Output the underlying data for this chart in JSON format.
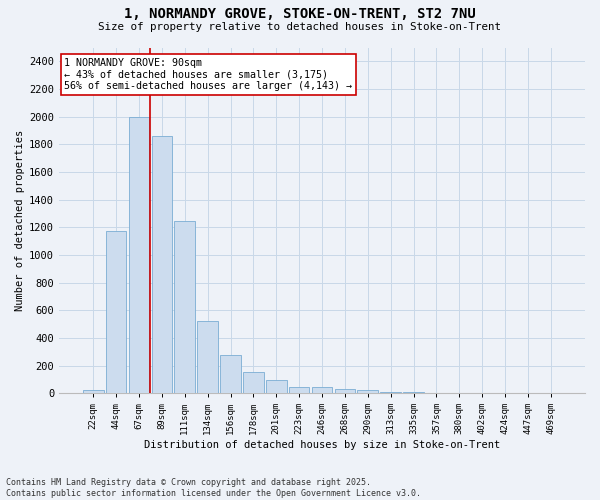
{
  "title_line1": "1, NORMANDY GROVE, STOKE-ON-TRENT, ST2 7NU",
  "title_line2": "Size of property relative to detached houses in Stoke-on-Trent",
  "xlabel": "Distribution of detached houses by size in Stoke-on-Trent",
  "ylabel": "Number of detached properties",
  "bar_labels": [
    "22sqm",
    "44sqm",
    "67sqm",
    "89sqm",
    "111sqm",
    "134sqm",
    "156sqm",
    "178sqm",
    "201sqm",
    "223sqm",
    "246sqm",
    "268sqm",
    "290sqm",
    "313sqm",
    "335sqm",
    "357sqm",
    "380sqm",
    "402sqm",
    "424sqm",
    "447sqm",
    "469sqm"
  ],
  "bar_values": [
    25,
    1170,
    2000,
    1860,
    1245,
    520,
    275,
    155,
    95,
    45,
    45,
    30,
    20,
    5,
    5,
    3,
    2,
    2,
    2,
    2,
    2
  ],
  "bar_color": "#ccdcee",
  "bar_edge_color": "#7aadd4",
  "grid_color": "#c8d8e8",
  "bg_color": "#eef2f8",
  "annotation_line1": "1 NORMANDY GROVE: 90sqm",
  "annotation_line2": "← 43% of detached houses are smaller (3,175)",
  "annotation_line3": "56% of semi-detached houses are larger (4,143) →",
  "vline_color": "#cc0000",
  "vline_xidx": 3,
  "footer_line1": "Contains HM Land Registry data © Crown copyright and database right 2025.",
  "footer_line2": "Contains public sector information licensed under the Open Government Licence v3.0.",
  "ylim": [
    0,
    2500
  ],
  "yticks": [
    0,
    200,
    400,
    600,
    800,
    1000,
    1200,
    1400,
    1600,
    1800,
    2000,
    2200,
    2400
  ]
}
